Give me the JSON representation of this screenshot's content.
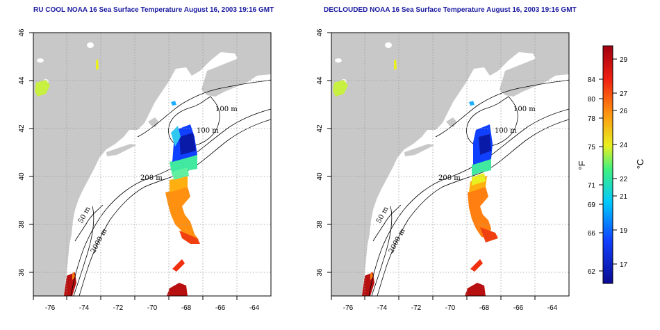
{
  "left_panel": {
    "title": "RU COOL NOAA 16 Sea Surface Temperature August 16, 2003 19:16 GMT"
  },
  "right_panel": {
    "title": "DECLOUDED NOAA 16 Sea Surface Temperature August 16, 2003 19:16 GMT"
  },
  "axes": {
    "lon_ticks": [
      "-76",
      "-74",
      "-72",
      "-70",
      "-68",
      "-66",
      "-64"
    ],
    "lat_ticks": [
      "36",
      "38",
      "40",
      "42",
      "44",
      "46"
    ]
  },
  "contour_labels": [
    "100 m",
    "100 m",
    "200 m",
    "50 m",
    "2000 m"
  ],
  "colorbar": {
    "f_ticks": [
      "84",
      "80",
      "78",
      "75",
      "71",
      "69",
      "66",
      "62"
    ],
    "c_ticks": [
      "29",
      "27",
      "26",
      "24",
      "22",
      "21",
      "19",
      "17"
    ],
    "f_unit": "°F",
    "c_unit": "°C"
  },
  "colors": {
    "land": "#c8c8c8",
    "cold": "#0a1aa8",
    "warm": "#ff6a10",
    "hot": "#b81010"
  }
}
